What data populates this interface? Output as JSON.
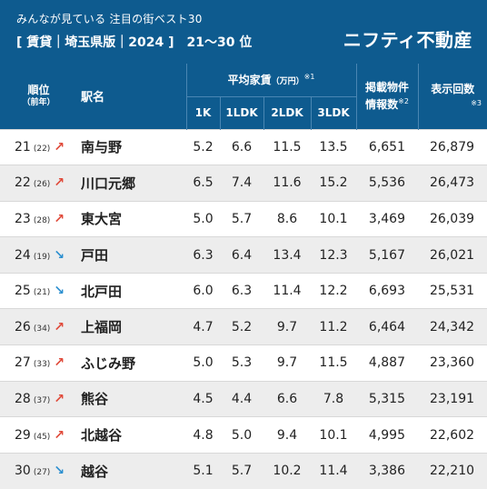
{
  "header": {
    "line1": "みんなが見ている 注目の街ベスト30",
    "line2": "[ 賃貸｜埼玉県版｜2024 ]　21〜30 位",
    "brand": "ニフティ不動産"
  },
  "columns": {
    "rank": "順位",
    "rank_sub": "（前年）",
    "station": "駅名",
    "rent_group": "平均家賃",
    "rent_unit": "（万円）",
    "rent_note": "※1",
    "rent_1k": "1K",
    "rent_1ldk": "1LDK",
    "rent_2ldk": "2LDK",
    "rent_3ldk": "3LDK",
    "listings_line1": "掲載物件",
    "listings_line2": "情報数",
    "listings_note": "※2",
    "views": "表示回数",
    "views_note": "※3"
  },
  "rows": [
    {
      "rank": "21",
      "prev": "(22)",
      "trend": "up",
      "arrow": "↗",
      "station": "南与野",
      "k1": "5.2",
      "ldk1": "6.6",
      "ldk2": "11.5",
      "ldk3": "13.5",
      "listings": "6,651",
      "views": "26,879"
    },
    {
      "rank": "22",
      "prev": "(26)",
      "trend": "up",
      "arrow": "↗",
      "station": "川口元郷",
      "k1": "6.5",
      "ldk1": "7.4",
      "ldk2": "11.6",
      "ldk3": "15.2",
      "listings": "5,536",
      "views": "26,473"
    },
    {
      "rank": "23",
      "prev": "(28)",
      "trend": "up",
      "arrow": "↗",
      "station": "東大宮",
      "k1": "5.0",
      "ldk1": "5.7",
      "ldk2": "8.6",
      "ldk3": "10.1",
      "listings": "3,469",
      "views": "26,039"
    },
    {
      "rank": "24",
      "prev": "(19)",
      "trend": "down",
      "arrow": "↘",
      "station": "戸田",
      "k1": "6.3",
      "ldk1": "6.4",
      "ldk2": "13.4",
      "ldk3": "12.3",
      "listings": "5,167",
      "views": "26,021"
    },
    {
      "rank": "25",
      "prev": "(21)",
      "trend": "down",
      "arrow": "↘",
      "station": "北戸田",
      "k1": "6.0",
      "ldk1": "6.3",
      "ldk2": "11.4",
      "ldk3": "12.2",
      "listings": "6,693",
      "views": "25,531"
    },
    {
      "rank": "26",
      "prev": "(34)",
      "trend": "up",
      "arrow": "↗",
      "station": "上福岡",
      "k1": "4.7",
      "ldk1": "5.2",
      "ldk2": "9.7",
      "ldk3": "11.2",
      "listings": "6,464",
      "views": "24,342"
    },
    {
      "rank": "27",
      "prev": "(33)",
      "trend": "up",
      "arrow": "↗",
      "station": "ふじみ野",
      "k1": "5.0",
      "ldk1": "5.3",
      "ldk2": "9.7",
      "ldk3": "11.5",
      "listings": "4,887",
      "views": "23,360"
    },
    {
      "rank": "28",
      "prev": "(37)",
      "trend": "up",
      "arrow": "↗",
      "station": "熊谷",
      "k1": "4.5",
      "ldk1": "4.4",
      "ldk2": "6.6",
      "ldk3": "7.8",
      "listings": "5,315",
      "views": "23,191"
    },
    {
      "rank": "29",
      "prev": "(45)",
      "trend": "up",
      "arrow": "↗",
      "station": "北越谷",
      "k1": "4.8",
      "ldk1": "5.0",
      "ldk2": "9.4",
      "ldk3": "10.1",
      "listings": "4,995",
      "views": "22,602"
    },
    {
      "rank": "30",
      "prev": "(27)",
      "trend": "down",
      "arrow": "↘",
      "station": "越谷",
      "k1": "5.1",
      "ldk1": "5.7",
      "ldk2": "10.2",
      "ldk3": "11.4",
      "listings": "3,386",
      "views": "22,210"
    }
  ],
  "colors": {
    "header_bg": "#0e5b8f",
    "up_arrow": "#e04a3a",
    "down_arrow": "#2b8fd0"
  }
}
